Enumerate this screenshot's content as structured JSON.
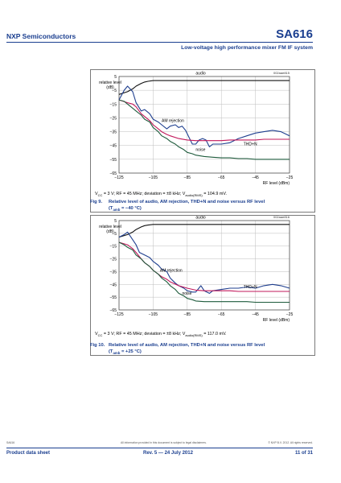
{
  "header": {
    "company": "NXP Semiconductors",
    "part": "SA616",
    "subtitle": "Low-voltage high performance mixer FM IF system"
  },
  "charts_text": [
    {
      "id": "002aae815",
      "ylabel_lines": [
        "relative level",
        "(dB)"
      ],
      "xlabel": "RF level (dBm)",
      "annotations": {
        "audio": "audio",
        "am": "AM rejection",
        "thd": "THD+N",
        "noise": "noise"
      },
      "conditions": {
        "pre": "V",
        "cc_sub": "CC",
        "mid": " = 3 V; RF = 45 MHz; deviation = ±8 kHz; V",
        "aud_sub": "audio(RMS)",
        "post": " = 104.9 mV."
      },
      "caption": {
        "number": "Fig 9.",
        "line1": "Relative level of audio, AM rejection, THD+N and noise versus RF level",
        "l2_pre": "(T",
        "l2_sub": "amb",
        "l2_post": " = −40 °C)"
      }
    },
    {
      "id": "002aae816",
      "ylabel_lines": [
        "relative level",
        "(dB)"
      ],
      "xlabel": "RF level (dBm)",
      "annotations": {
        "audio": "audio",
        "am": "AM rejection",
        "thd": "THD+N",
        "noise": "noise"
      },
      "conditions": {
        "pre": "V",
        "cc_sub": "CC",
        "mid": " = 3 V; RF = 45 MHz; deviation = ±8 kHz; V",
        "aud_sub": "audio(RMS)",
        "post": " = 117.0 mV."
      },
      "caption": {
        "number": "Fig 10.",
        "line1": "Relative level of audio, AM rejection, THD+N and noise versus RF level",
        "l2_pre": "(T",
        "l2_sub": "amb",
        "l2_post": " = +25 °C)"
      }
    }
  ],
  "chart_data": [
    {
      "type": "line",
      "xlim": [
        -125,
        -25
      ],
      "ylim": [
        -65,
        5
      ],
      "xticks": [
        "−125",
        "−105",
        "−85",
        "−65",
        "−45",
        "−25"
      ],
      "yticks": [
        "5",
        "−5",
        "−15",
        "−25",
        "−35",
        "−45",
        "−55",
        "−65"
      ],
      "series": [
        {
          "name": "audio",
          "color": "#111111",
          "x": [
            -125,
            -120,
            -117,
            -115,
            -112,
            -110,
            -108,
            -105,
            -100,
            -95,
            -90,
            -25
          ],
          "y": [
            -8,
            -6,
            -4,
            -2,
            0,
            1,
            1.5,
            2,
            2,
            2,
            2,
            2
          ]
        },
        {
          "name": "AM rejection",
          "color": "#1f3f8f",
          "x": [
            -125,
            -122,
            -120,
            -117,
            -115,
            -112,
            -110,
            -107,
            -105,
            -102,
            -100,
            -97,
            -95,
            -92,
            -90,
            -88,
            -86,
            -84,
            -82,
            -80,
            -78,
            -76,
            -74,
            -72,
            -70,
            -65,
            -60,
            -55,
            -50,
            -45,
            -40,
            -35,
            -30,
            -25
          ],
          "y": [
            -12,
            -5,
            -2,
            -6,
            -14,
            -20,
            -19,
            -22,
            -26,
            -28,
            -30,
            -33,
            -31,
            -30,
            -32,
            -31,
            -34,
            -39,
            -44,
            -44,
            -41,
            -40,
            -41,
            -46,
            -44,
            -44,
            -43,
            -40,
            -38,
            -36,
            -35,
            -34,
            -35,
            -38
          ]
        },
        {
          "name": "THD+N",
          "color": "#c2185b",
          "x": [
            -125,
            -120,
            -117,
            -115,
            -112,
            -110,
            -107,
            -105,
            -102,
            -100,
            -97,
            -95,
            -90,
            -85,
            -80,
            -75,
            -70,
            -65,
            -60,
            -55,
            -50,
            -45,
            -40,
            -35,
            -30,
            -25
          ],
          "y": [
            -12,
            -14,
            -15,
            -17,
            -22,
            -24,
            -27,
            -30,
            -33,
            -35,
            -37,
            -38,
            -40,
            -41,
            -41.5,
            -41.5,
            -41.5,
            -41.5,
            -41,
            -41,
            -41,
            -41,
            -40.5,
            -40.5,
            -40.5,
            -40.5
          ]
        },
        {
          "name": "noise",
          "color": "#1e5b3c",
          "x": [
            -125,
            -122,
            -120,
            -117,
            -115,
            -112,
            -110,
            -107,
            -105,
            -102,
            -100,
            -97,
            -95,
            -92,
            -90,
            -87,
            -85,
            -82,
            -80,
            -75,
            -70,
            -65,
            -60,
            -55,
            -50,
            -45,
            -40,
            -35,
            -30,
            -25
          ],
          "y": [
            -12,
            -13,
            -15,
            -18,
            -20,
            -23,
            -26,
            -28,
            -32,
            -35,
            -38,
            -40,
            -42,
            -44,
            -46,
            -48,
            -50,
            -51,
            -52,
            -53,
            -53.5,
            -54,
            -54,
            -54.5,
            -54.5,
            -55,
            -55,
            -55,
            -55,
            -55
          ]
        }
      ]
    },
    {
      "type": "line",
      "xlim": [
        -125,
        -25
      ],
      "ylim": [
        -65,
        5
      ],
      "xticks": [
        "−125",
        "−105",
        "−85",
        "−65",
        "−45",
        "−25"
      ],
      "yticks": [
        "5",
        "−5",
        "−15",
        "−25",
        "−35",
        "−45",
        "−55",
        "−65"
      ],
      "series": [
        {
          "name": "audio",
          "color": "#111111",
          "x": [
            -125,
            -120,
            -117,
            -115,
            -112,
            -110,
            -108,
            -105,
            -100,
            -95,
            -90,
            -25
          ],
          "y": [
            -8,
            -6,
            -4,
            -2,
            0,
            1,
            1.5,
            2,
            2,
            2,
            2,
            2
          ]
        },
        {
          "name": "AM rejection",
          "color": "#1f3f8f",
          "x": [
            -125,
            -122,
            -120,
            -117,
            -115,
            -113,
            -110,
            -107,
            -105,
            -102,
            -100,
            -97,
            -95,
            -92,
            -90,
            -87,
            -85,
            -82,
            -80,
            -77,
            -75,
            -72,
            -70,
            -65,
            -60,
            -55,
            -50,
            -45,
            -40,
            -35,
            -30,
            -25
          ],
          "y": [
            -8,
            -6,
            -4,
            -10,
            -14,
            -20,
            -22,
            -24,
            -27,
            -30,
            -33,
            -35,
            -40,
            -44,
            -46,
            -48,
            -50,
            -51,
            -51,
            -46,
            -50,
            -52,
            -50,
            -49,
            -48,
            -48,
            -47,
            -48,
            -46,
            -45,
            -46,
            -48
          ]
        },
        {
          "name": "THD+N",
          "color": "#c2185b",
          "x": [
            -125,
            -120,
            -117,
            -115,
            -112,
            -110,
            -107,
            -105,
            -102,
            -100,
            -97,
            -95,
            -90,
            -85,
            -80,
            -75,
            -70,
            -65,
            -60,
            -55,
            -50,
            -45,
            -40,
            -35,
            -30,
            -25
          ],
          "y": [
            -12,
            -14,
            -17,
            -20,
            -25,
            -28,
            -31,
            -34,
            -37,
            -39,
            -41,
            -43,
            -46,
            -48,
            -49.5,
            -50,
            -50,
            -50,
            -50,
            -50.5,
            -50.5,
            -50.5,
            -50.5,
            -50.5,
            -50.5,
            -50.5
          ]
        },
        {
          "name": "noise",
          "color": "#1e5b3c",
          "x": [
            -125,
            -122,
            -120,
            -117,
            -115,
            -112,
            -110,
            -107,
            -105,
            -102,
            -100,
            -97,
            -95,
            -92,
            -90,
            -87,
            -85,
            -82,
            -80,
            -75,
            -70,
            -65,
            -60,
            -55,
            -50,
            -45,
            -40,
            -35,
            -30,
            -25
          ],
          "y": [
            -12,
            -14,
            -16,
            -18,
            -22,
            -25,
            -28,
            -31,
            -34,
            -37,
            -40,
            -43,
            -46,
            -49,
            -52,
            -54,
            -56,
            -57,
            -58,
            -58.5,
            -58.5,
            -58.5,
            -58.5,
            -58.5,
            -58.5,
            -59,
            -59,
            -59,
            -59,
            -59
          ]
        }
      ]
    }
  ],
  "footer": {
    "doc_id": "SA616",
    "notice": "All information provided in this document is subject to legal disclaimers.",
    "copyright": "© NXP B.V. 2012. All rights reserved.",
    "doc_type": "Product data sheet",
    "revision": "Rev. 5 — 24 July 2012",
    "page": "11 of 31"
  }
}
